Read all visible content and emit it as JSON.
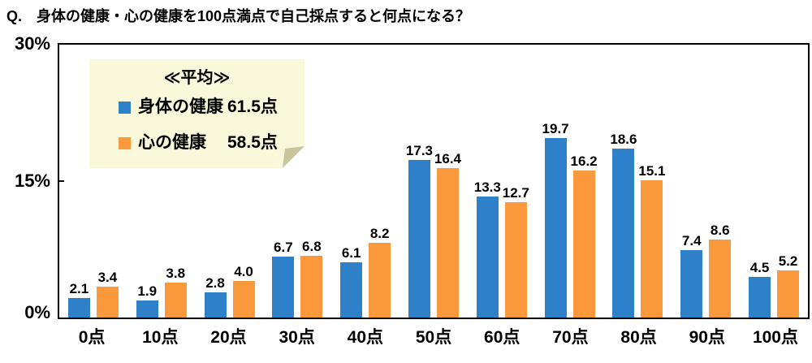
{
  "colors": {
    "background": "#FFFFFF",
    "axis": "#000000",
    "series_physical": "#2E80C8",
    "series_mental": "#F9993B",
    "legend_bg": "#FAF8DB",
    "legend_fold": "#C8C49B",
    "text": "#000000"
  },
  "chart_data": {
    "type": "bar",
    "title": "Q.　身体の健康・心の健康を100点満点で自己採点すると何点になる？",
    "categories": [
      "0点",
      "10点",
      "20点",
      "30点",
      "40点",
      "50点",
      "60点",
      "70点",
      "80点",
      "90点",
      "100点"
    ],
    "series": [
      {
        "name": "身体の健康",
        "color": "#2E80C8",
        "values": [
          2.1,
          1.9,
          2.8,
          6.7,
          6.1,
          17.3,
          13.3,
          19.7,
          18.6,
          7.4,
          4.5
        ]
      },
      {
        "name": "心の健康",
        "color": "#F9993B",
        "values": [
          3.4,
          3.8,
          4.0,
          6.8,
          8.2,
          16.4,
          12.7,
          16.2,
          15.1,
          8.6,
          5.2
        ]
      }
    ],
    "xlabel": "",
    "ylabel": "",
    "ylim": [
      0,
      30
    ],
    "yticks": [
      "0%",
      "15%",
      "30%"
    ],
    "grid": false,
    "value_labels": true,
    "legend": {
      "position": "top-left",
      "title": "≪平均≫",
      "entries": [
        {
          "label": "身体の健康",
          "value": "61.5点",
          "color": "#2E80C8"
        },
        {
          "label": "心の健康",
          "value": "58.5点",
          "color": "#F9993B"
        }
      ]
    }
  }
}
